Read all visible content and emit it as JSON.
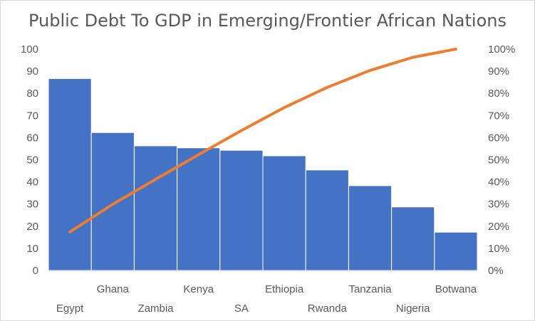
{
  "chart_data": {
    "type": "bar",
    "title": "Public Debt To GDP in Emerging/Frontier African Nations",
    "categories": [
      "Egypt",
      "Ghana",
      "Zambia",
      "Kenya",
      "SA",
      "Ethiopia",
      "Rwanda",
      "Tanzania",
      "Nigeria",
      "Botwana"
    ],
    "series": [
      {
        "type": "bar",
        "axis": "left",
        "color": "#4472C4",
        "values": [
          86.7,
          62.3,
          56.3,
          55.4,
          54.3,
          51.8,
          45.4,
          38.3,
          28.7,
          17.3
        ]
      },
      {
        "type": "line",
        "axis": "right",
        "color": "#ED7D31",
        "values": [
          17.4,
          29.9,
          41.2,
          52.3,
          63.2,
          73.6,
          82.7,
          90.4,
          96.3,
          100
        ]
      }
    ],
    "y_left": {
      "min": 0,
      "max": 100,
      "ticks": [
        "0",
        "10",
        "20",
        "30",
        "40",
        "50",
        "60",
        "70",
        "80",
        "90",
        "100"
      ]
    },
    "y_right": {
      "min": 0,
      "max": 100,
      "ticks": [
        "0%",
        "10%",
        "20%",
        "30%",
        "40%",
        "50%",
        "60%",
        "70%",
        "80%",
        "90%",
        "100%"
      ]
    },
    "grid": false,
    "legend": "none"
  }
}
